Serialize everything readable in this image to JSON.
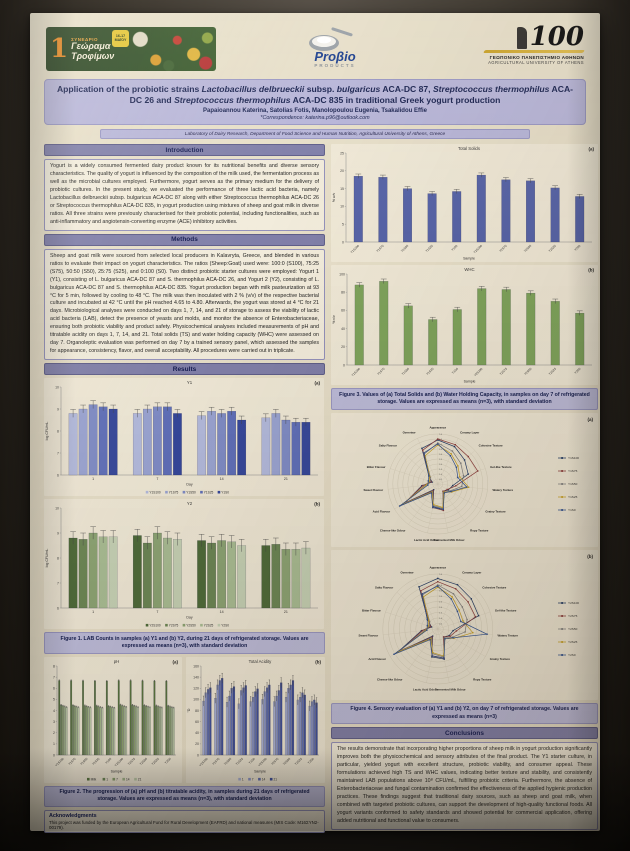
{
  "poster": {
    "header": {
      "conference_logo": {
        "number": "1",
        "label_top": "ΣΥΝΕΔΡΙΟ",
        "title_line1": "Γεώραμα",
        "title_line2": "Τροφίμων",
        "badge_line1": "16-17",
        "badge_line2": "ΜΑΪΟΥ",
        "badge_line3": "2025"
      },
      "probio_logo": {
        "name": "Proβio",
        "sub": "PRODUCTS"
      },
      "university_logo": {
        "number": "100",
        "line1": "ΓΕΩΠΟΝΙΚΟ ΠΑΝΕΠΙΣΤΗΜΙΟ ΑΘΗΝΩΝ",
        "line2": "AGRICULTURAL UNIVERSITY OF ATHENS"
      }
    },
    "title_segments": [
      {
        "t": "Application of the probiotic strains ",
        "i": false
      },
      {
        "t": "Lactobacillus delbrueckii",
        "i": true
      },
      {
        "t": " subsp. ",
        "i": false
      },
      {
        "t": "bulgaricus",
        "i": true
      },
      {
        "t": " ACA-DC 87, ",
        "i": false
      },
      {
        "t": "Streptococcus thermophilus",
        "i": true
      },
      {
        "t": " ACA-DC 26 and ",
        "i": false
      },
      {
        "t": "Streptococcus thermophilus",
        "i": true
      },
      {
        "t": " ACA-DC 835 in traditional Greek yogurt production",
        "i": false
      }
    ],
    "authors": "Papaioannou Katerina, Satolias Fotis, Manolopoulou Eugenia, Tsakalidou Effie",
    "correspondence": "*Correspondence: katerina.p96@outlook.com",
    "affiliation": "Laboratory of Dairy Research, Department of Food Science and Human Nutrition, Agricultural University of Athens, Greece",
    "sections": {
      "introduction": {
        "heading": "Introduction",
        "text": "Yogurt is a widely consumed fermented dairy product known for its nutritional benefits and diverse sensory characteristics. The quality of yogurt is influenced by the composition of the milk used, the fermentation process as well as the microbial cultures employed. Furthermore, yogurt serves as the primary medium for the delivery of probiotic cultures. In the present study, we evaluated the performance of three lactic acid bacteria, namely Lactobacillus delbrueckii subsp. bulgaricus ACA-DC 87 along with either Streptococcus thermophilus ACA-DC 26 or Streptococcus thermophilus ACA-DC 835, in yogurt production using mixtures of sheep and goat milk in diverse ratios. All three strains were previously characterised for their probiotic potential, including functionalities, such as anti-inflammatory and angiotensin-converting enzyme (ACE) inhibitory activities."
      },
      "methods": {
        "heading": "Methods",
        "text": "Sheep and goat milk were sourced from selected local producers in Kalavryta, Greece, and blended in various ratios to evaluate their impact on yogurt characteristics. The ratios (Sheep:Goat) used were: 100:0 (S100), 75:25 (S75), 50:50 (S50), 25:75 (S25), and 0:100 (S0). Two distinct probiotic starter cultures were employed: Yogurt 1 (Y1), consisting of L. bulgaricus ACA-DC 87 and S. thermophilus ACA-DC 26, and Yogurt 2 (Y2), consisting of L. bulgaricus ACA-DC 87 and S. thermophilus ACA-DC 835. Yogurt production began with milk pasteurization at 93 °C for 5 min, followed by cooling to 48 °C. The milk was then inoculated with 2 % (v/v) of the respective bacterial culture and incubated at 42 °C until the pH reached 4.65 to 4.80. Afterwards, the yogurt was stored at 4 °C for 21 days. Microbiological analyses were conducted on days 1, 7, 14, and 21 of storage to assess the viability of lactic acid bacteria (LAB), detect the presence of yeasts and molds, and monitor the absence of Enterobacteriaceae, ensuring both probiotic viability and product safety. Physicochemical analyses included measurements of pH and titratable acidity on days 1, 7, 14, and 21. Total solids (TS) and water holding capacity (WHC) were assessed on day 7. Organoleptic evaluation was performed on day 7 by a trained sensory panel, which assessed the samples for appearance, consistency, flavor, and overall acceptability. All procedures were carried out in triplicate."
      },
      "results": {
        "heading": "Results"
      },
      "conclusions": {
        "heading": "Conclusions",
        "text": "The results demonstrate that incorporating higher proportions of sheep milk in yogurt production significantly improves both the physicochemical and sensory attributes of the final product. The Y1 starter culture, in particular, yielded yogurt with excellent structure, probiotic viability, and consumer appeal. These formulations achieved high TS and WHC values, indicating better texture and stability, and consistently maintained LAB populations above 10⁸ CFU/mL, fulfilling probiotic criteria. Furthermore, the absence of Enterobacteriaceae and fungal contamination confirmed the effectiveness of the applied hygienic production practices. These findings suggest that traditional dairy sources, such as sheep and goat milk, when combined with targeted probiotic cultures, can support the development of high-quality functional foods. All yogurt variants conformed to safety standards and showed potential for commercial application, offering added nutritional and functional value to consumers."
      },
      "acknowledgments": {
        "heading": "Acknowledgments",
        "text": "This project was funded by the European Agricultural Fund for Rural Development (EAFRD) and national measures (MIS Code: M16ΣΥΝ2-00179)."
      }
    },
    "captions": {
      "figure1": "Figure 1. LAB Counts in samples (a) Y1 and (b) Y2, during 21 days of refrigerated storage. Values are expressed as means (n=3), with standard deviation",
      "figure2": "Figure 2. The progression of (a) pH and (b) titratable acidity, in samples during 21 days of refrigerated storage. Values are expressed as means (n=3), with standard deviation",
      "figure3": "Figure 3. Values of (a) Total Solids and (b) Water Holding Capacity, in samples on day 7 of refrigerated storage. Values are expressed as means (n=3), with standard deviation",
      "figure4": "Figure 4. Sensory evaluation of (a) Y1 and (b) Y2, on day 7 of refrigerated storage. Values are expressed as means (n=3)"
    },
    "colors": {
      "section_header": "#807fa9",
      "title_bar": "#b8b6d9",
      "caption_bar": "#bdbcdb",
      "poster_background": "#e7dfc9"
    }
  },
  "chart_data": [
    {
      "id": "lab_y1",
      "type": "bar",
      "title": "Y1",
      "panel": "(a)",
      "xlabel": "Day",
      "ylabel": "log CFU/mL",
      "ylim": [
        6,
        10
      ],
      "ystep": 1,
      "err": 0.18,
      "rotate_labels": false,
      "categories": [
        "1",
        "7",
        "14",
        "21"
      ],
      "series": [
        {
          "name": "Y1S100",
          "color": "#b3bade",
          "values": [
            8.8,
            8.8,
            8.7,
            8.6
          ]
        },
        {
          "name": "Y1S75",
          "color": "#9aa4d3",
          "values": [
            9.0,
            9.0,
            8.9,
            8.8
          ]
        },
        {
          "name": "Y1S50",
          "color": "#7f8cc7",
          "values": [
            9.2,
            9.1,
            8.8,
            8.5
          ]
        },
        {
          "name": "Y1S25",
          "color": "#5f6fba",
          "values": [
            9.1,
            9.1,
            8.9,
            8.4
          ]
        },
        {
          "name": "Y1S0",
          "color": "#35479c",
          "values": [
            9.0,
            8.8,
            8.5,
            8.4
          ]
        }
      ]
    },
    {
      "id": "lab_y2",
      "type": "bar",
      "title": "Y2",
      "panel": "(b)",
      "xlabel": "Day",
      "ylabel": "log CFU/mL",
      "ylim": [
        6,
        10
      ],
      "ystep": 1,
      "err": 0.25,
      "rotate_labels": false,
      "categories": [
        "1",
        "7",
        "14",
        "21"
      ],
      "series": [
        {
          "name": "Y2S100",
          "color": "#4d6a39",
          "values": [
            8.8,
            8.9,
            8.7,
            8.5
          ]
        },
        {
          "name": "Y2S75",
          "color": "#6b8655",
          "values": [
            8.75,
            8.6,
            8.6,
            8.55
          ]
        },
        {
          "name": "Y2S50",
          "color": "#8ca474",
          "values": [
            9.0,
            9.0,
            8.7,
            8.35
          ]
        },
        {
          "name": "Y2S25",
          "color": "#a9bd94",
          "values": [
            8.85,
            8.8,
            8.65,
            8.35
          ]
        },
        {
          "name": "Y2S0",
          "color": "#c6d2b6",
          "values": [
            8.85,
            8.75,
            8.5,
            8.4
          ]
        }
      ]
    },
    {
      "id": "ph",
      "type": "bar",
      "title": "pH",
      "panel": "(a)",
      "xlabel": "Sample",
      "ylabel": "",
      "ylim": [
        0,
        8
      ],
      "ystep": 1,
      "err": 0.06,
      "rotate_labels": true,
      "ml": 13,
      "categories": [
        "Y1S100",
        "Y1S75",
        "Y1S50",
        "Y1S25",
        "Y1S0",
        "Y2S100",
        "Y2S75",
        "Y2S50",
        "Y2S25",
        "Y2S0"
      ],
      "series": [
        {
          "name": "Milk",
          "color": "#57743f",
          "values": [
            6.7,
            6.7,
            6.68,
            6.66,
            6.65,
            6.7,
            6.7,
            6.68,
            6.66,
            6.65
          ]
        },
        {
          "name": "1",
          "color": "#6d8757",
          "values": [
            4.5,
            4.48,
            4.45,
            4.43,
            4.4,
            4.52,
            4.5,
            4.47,
            4.44,
            4.42
          ]
        },
        {
          "name": "7",
          "color": "#89a06d",
          "values": [
            4.42,
            4.4,
            4.38,
            4.36,
            4.34,
            4.44,
            4.42,
            4.4,
            4.37,
            4.35
          ]
        },
        {
          "name": "14",
          "color": "#a3b78c",
          "values": [
            4.36,
            4.34,
            4.32,
            4.3,
            4.29,
            4.38,
            4.36,
            4.34,
            4.31,
            4.3
          ]
        },
        {
          "name": "21",
          "color": "#bccaa8",
          "values": [
            4.3,
            4.28,
            4.27,
            4.25,
            4.24,
            4.32,
            4.3,
            4.28,
            4.26,
            4.25
          ]
        }
      ]
    },
    {
      "id": "acidity",
      "type": "bar",
      "title": "Total Acidity",
      "panel": "(b)",
      "xlabel": "Sample",
      "ylabel": "°D",
      "ylim": [
        0,
        160
      ],
      "ystep": 20,
      "err": 9,
      "rotate_labels": true,
      "ml": 15,
      "categories": [
        "Y1S100",
        "Y1S75",
        "Y1S50",
        "Y1S25",
        "Y1S0",
        "Y2S100",
        "Y2S75",
        "Y2S50",
        "Y2S25",
        "Y2S0"
      ],
      "series": [
        {
          "name": "1",
          "color": "#a9b2d9",
          "values": [
            97,
            102,
            95,
            92,
            96,
            100,
            96,
            104,
            99,
            88
          ]
        },
        {
          "name": "7",
          "color": "#8a96cc",
          "values": [
            112,
            126,
            106,
            116,
            104,
            114,
            106,
            120,
            104,
            96
          ]
        },
        {
          "name": "14",
          "color": "#5f6fb4",
          "values": [
            118,
            134,
            120,
            121,
            114,
            121,
            116,
            126,
            112,
            99
          ]
        },
        {
          "name": "21",
          "color": "#3d4e9c",
          "values": [
            121,
            138,
            123,
            125,
            119,
            126,
            130,
            134,
            108,
            94
          ]
        }
      ]
    },
    {
      "id": "ts",
      "type": "bar",
      "title": "Total Solids",
      "panel": "(a)",
      "xlabel": "Sample",
      "ylabel": "% w/v",
      "ylim": [
        0,
        25
      ],
      "ystep": 5,
      "err": 0.6,
      "rotate_labels": true,
      "legend": false,
      "ml": 15,
      "categories": [
        "Y1S100",
        "Y1S75",
        "Y1S50",
        "Y1S25",
        "Y1S0",
        "Y2S100",
        "Y2S75",
        "Y2S50",
        "Y2S25",
        "Y2S0"
      ],
      "series": [
        {
          "name": null,
          "color": "#5663a8",
          "values": [
            18.5,
            18.2,
            15.0,
            13.6,
            14.2,
            18.8,
            17.5,
            17.2,
            15.2,
            12.8
          ]
        }
      ]
    },
    {
      "id": "whc",
      "type": "bar",
      "title": "WHC",
      "panel": "(b)",
      "xlabel": "Sample",
      "ylabel": "% v/v",
      "ylim": [
        0,
        100
      ],
      "ystep": 20,
      "err": 2.5,
      "rotate_labels": true,
      "legend": false,
      "ml": 16,
      "categories": [
        "Y1S100",
        "Y1S75",
        "Y1S50",
        "Y1S25",
        "Y1S0",
        "Y2S100",
        "Y2S75",
        "Y2S50",
        "Y2S25",
        "Y2S0"
      ],
      "series": [
        {
          "name": null,
          "color": "#7ea45c",
          "values": [
            88,
            92,
            65,
            50,
            61,
            84,
            83,
            79,
            70,
            57
          ]
        }
      ]
    },
    {
      "id": "radar_y1",
      "type": "radar",
      "panel": "(a)",
      "scale_max": 5,
      "ring_step": 0.5,
      "axes": [
        "Appearance",
        "Creamy Layer",
        "Cohesive Texture",
        "Gel-like Texture",
        "Watery Texture",
        "Grainy Texture",
        "Ropy Texture",
        "Fermented Milk Odour",
        "Lactic Acid Odour",
        "Cheese-like Odour",
        "Acid Flavour",
        "Sweet Flavour",
        "Bitter Flavour",
        "Salty Flavour",
        "Overview"
      ],
      "series": [
        {
          "name": "Y1S100",
          "color": "#1f3864",
          "values": [
            4.4,
            4.1,
            3.6,
            3.2,
            1.5,
            1.2,
            0.9,
            2.6,
            2.3,
            0.7,
            3.8,
            1.6,
            0.6,
            1.2,
            3.9
          ]
        },
        {
          "name": "Y1S75",
          "color": "#8b3a3a",
          "values": [
            4.5,
            4.3,
            4.1,
            4.2,
            1.8,
            1.1,
            0.9,
            2.7,
            2.4,
            0.8,
            3.9,
            1.5,
            0.7,
            1.1,
            3.7
          ]
        },
        {
          "name": "Y1S50",
          "color": "#7f7f7f",
          "values": [
            4.1,
            3.6,
            3.1,
            2.7,
            2.4,
            1.4,
            1.0,
            2.5,
            2.2,
            0.9,
            4.0,
            1.3,
            0.8,
            1.0,
            3.3
          ]
        },
        {
          "name": "Y1S25",
          "color": "#c9a227",
          "values": [
            3.9,
            3.3,
            2.7,
            2.3,
            3.1,
            1.6,
            1.0,
            2.4,
            2.1,
            1.0,
            4.2,
            1.2,
            0.9,
            1.1,
            3.1
          ]
        },
        {
          "name": "Y1S0",
          "color": "#2e4f8f",
          "values": [
            4.0,
            3.1,
            2.5,
            2.1,
            2.9,
            1.5,
            1.1,
            2.6,
            2.4,
            1.1,
            4.4,
            1.0,
            1.0,
            1.2,
            3.4
          ]
        }
      ]
    },
    {
      "id": "radar_y2",
      "type": "radar",
      "panel": "(b)",
      "scale_max": 5,
      "ring_step": 0.5,
      "axes": [
        "Appearance",
        "Creamy Layer",
        "Cohesive Texture",
        "Gel-like Texture",
        "Watery Texture",
        "Grainy Texture",
        "Ropy Texture",
        "Fermented Milk Odour",
        "Lactic Acid Odour",
        "Cheese-like Odour",
        "Acid Flavour",
        "Sweet Flavour",
        "Bitter Flavour",
        "Salty Flavour",
        "Overview"
      ],
      "series": [
        {
          "name": "Y2S100",
          "color": "#1f3864",
          "values": [
            4.6,
            4.4,
            4.1,
            3.9,
            1.4,
            1.2,
            0.9,
            2.8,
            2.6,
            0.8,
            4.2,
            1.5,
            0.6,
            1.2,
            4.2
          ]
        },
        {
          "name": "Y2S75",
          "color": "#8b3a3a",
          "values": [
            4.3,
            4.0,
            3.7,
            3.6,
            1.7,
            1.3,
            0.9,
            2.7,
            2.5,
            0.9,
            4.0,
            1.4,
            0.7,
            1.1,
            3.8
          ]
        },
        {
          "name": "Y2S50",
          "color": "#7f7f7f",
          "values": [
            4.0,
            3.5,
            3.0,
            2.8,
            2.5,
            1.5,
            1.0,
            2.6,
            2.3,
            1.0,
            4.1,
            1.2,
            0.8,
            1.0,
            3.4
          ]
        },
        {
          "name": "Y2S25",
          "color": "#c9a227",
          "values": [
            3.8,
            3.2,
            2.6,
            2.4,
            3.2,
            1.7,
            1.1,
            2.5,
            2.2,
            1.1,
            4.3,
            1.1,
            0.9,
            1.1,
            3.2
          ]
        },
        {
          "name": "Y2S0",
          "color": "#2e4f8f",
          "values": [
            3.9,
            3.0,
            2.4,
            2.2,
            4.5,
            1.6,
            1.1,
            2.7,
            2.5,
            1.2,
            4.6,
            1.0,
            1.0,
            1.3,
            3.5
          ]
        }
      ]
    }
  ]
}
